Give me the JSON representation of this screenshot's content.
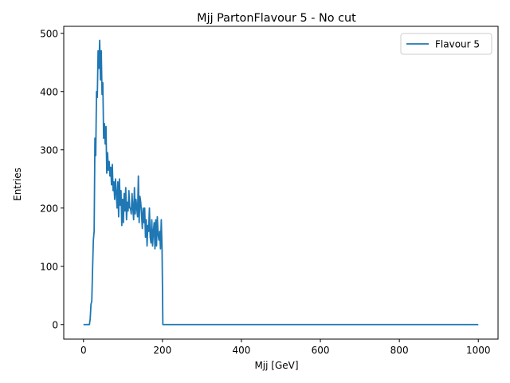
{
  "chart_data": {
    "type": "line",
    "title": "Mjj PartonFlavour 5 - No cut",
    "xlabel": "Mjj [GeV]",
    "ylabel": "Entries",
    "xlim": [
      -50,
      1050
    ],
    "ylim": [
      -25,
      512
    ],
    "xticks": [
      0,
      200,
      400,
      600,
      800,
      1000
    ],
    "yticks": [
      0,
      100,
      200,
      300,
      400,
      500
    ],
    "grid": false,
    "legend": "top-right",
    "color": "#1f77b4",
    "series": [
      {
        "name": "Flavour 5",
        "x": [
          0,
          15,
          17,
          19,
          21,
          23,
          25,
          27,
          29,
          31,
          33,
          35,
          37,
          39,
          41,
          43,
          45,
          47,
          49,
          51,
          53,
          55,
          57,
          59,
          61,
          63,
          65,
          67,
          69,
          71,
          73,
          75,
          77,
          79,
          81,
          83,
          85,
          87,
          89,
          91,
          93,
          95,
          97,
          99,
          101,
          103,
          105,
          107,
          109,
          111,
          113,
          115,
          117,
          119,
          121,
          123,
          125,
          127,
          129,
          131,
          133,
          135,
          137,
          139,
          141,
          143,
          145,
          147,
          149,
          151,
          153,
          155,
          157,
          159,
          161,
          163,
          165,
          167,
          169,
          171,
          173,
          175,
          177,
          179,
          181,
          183,
          185,
          187,
          189,
          191,
          193,
          195,
          197,
          199,
          201,
          1000
        ],
        "y": [
          0,
          0,
          10,
          35,
          40,
          95,
          145,
          160,
          320,
          290,
          400,
          390,
          470,
          440,
          488,
          420,
          470,
          395,
          415,
          320,
          345,
          310,
          340,
          260,
          295,
          265,
          280,
          255,
          270,
          240,
          275,
          230,
          245,
          215,
          250,
          225,
          200,
          245,
          185,
          250,
          205,
          230,
          170,
          215,
          175,
          225,
          195,
          235,
          180,
          210,
          195,
          230,
          200,
          200,
          190,
          225,
          200,
          180,
          235,
          190,
          215,
          200,
          185,
          255,
          175,
          220,
          210,
          190,
          165,
          200,
          175,
          200,
          150,
          180,
          135,
          170,
          160,
          200,
          150,
          140,
          180,
          135,
          160,
          175,
          130,
          180,
          135,
          185,
          155,
          145,
          160,
          130,
          180,
          130,
          0,
          0
        ]
      }
    ]
  }
}
